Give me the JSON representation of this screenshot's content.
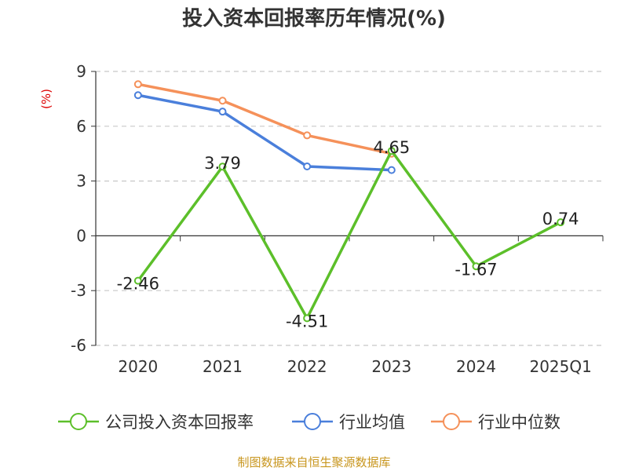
{
  "chart_data": {
    "type": "line",
    "title": "投入资本回报率历年情况(%)",
    "ylabel": "(%)",
    "xlabel": "",
    "categories": [
      "2020",
      "2021",
      "2022",
      "2023",
      "2024",
      "2025Q1"
    ],
    "ylim": [
      -6,
      9
    ],
    "yticks": [
      9,
      6,
      3,
      0,
      -3,
      -6
    ],
    "grid": true,
    "legend_position": "bottom",
    "series": [
      {
        "name": "公司投入资本回报率",
        "color": "#5cbf2a",
        "values": [
          -2.46,
          3.79,
          -4.51,
          4.65,
          -1.67,
          0.74
        ],
        "labels": [
          "-2.46",
          "3.79",
          "-4.51",
          "4.65",
          "-1.67",
          "0.74"
        ]
      },
      {
        "name": "行业均值",
        "color": "#4a7fdb",
        "values": [
          7.7,
          6.8,
          3.8,
          3.6,
          null,
          null
        ]
      },
      {
        "name": "行业中位数",
        "color": "#f5915a",
        "values": [
          8.3,
          7.4,
          5.5,
          4.5,
          null,
          null
        ]
      }
    ],
    "source": "制图数据来自恒生聚源数据库"
  }
}
